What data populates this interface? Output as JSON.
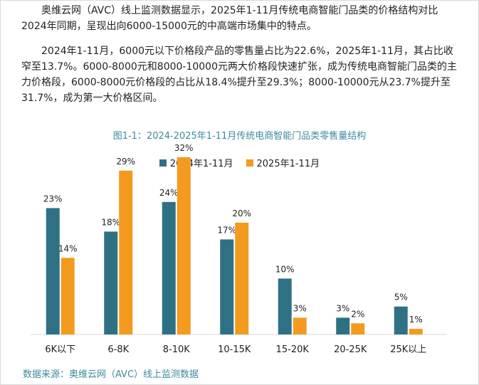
{
  "paragraphs": {
    "p1": "奥维云网（AVC）线上监测数据显示，2025年1-11月传统电商智能门品类的价格结构对比2024年同期，呈现出向6000-15000元的中高端市场集中的特点。",
    "p2": "2024年1-11月，6000元以下价格段产品的零售量占比为22.6%，2025年1-11月，其占比收窄至13.7%。6000-8000元和8000-10000元两大价格段快速扩张，成为传统电商智能门品类的主力价格段，6000-8000元价格段的占比从18.4%提升至29.3%；8000-10000元从23.7%提升至31.7%，成为第一大价格区间。"
  },
  "caption": "图1-1：2024-2025年1-11月传统电商智能门品类零售量结构",
  "source": "数据来源：奥维云网（AVC）线上监测数据",
  "colors": {
    "series_2024": "#2e7185",
    "series_2025": "#f39a1f",
    "caption": "#3d8aa0"
  },
  "chart_data": {
    "type": "bar",
    "title": "图1-1：2024-2025年1-11月传统电商智能门品类零售量结构",
    "categories": [
      "6K以下",
      "6-8K",
      "8-10K",
      "10-15K",
      "15-20K",
      "20-25K",
      "25K以上"
    ],
    "series": [
      {
        "name": "2024年1-11月",
        "values": [
          22.6,
          18.4,
          23.7,
          17,
          10,
          3,
          5
        ],
        "labels": [
          "23%",
          "18%",
          "24%",
          "17%",
          "10%",
          "3%",
          "5%"
        ]
      },
      {
        "name": "2025年1-11月",
        "values": [
          13.7,
          29.3,
          31.7,
          20,
          3,
          2,
          1
        ],
        "labels": [
          "14%",
          "29%",
          "32%",
          "20%",
          "3%",
          "2%",
          "1%"
        ]
      }
    ],
    "ylim": [
      0,
      35
    ],
    "legend": "top-center",
    "grid": false,
    "xlabel": "",
    "ylabel": ""
  }
}
